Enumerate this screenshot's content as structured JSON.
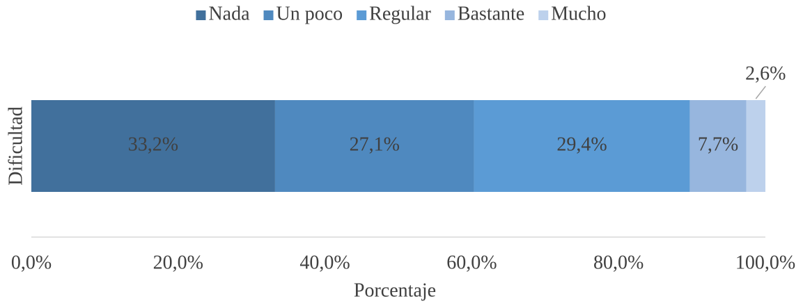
{
  "chart_data": {
    "type": "stacked_barh",
    "categories": [
      "Dificultad"
    ],
    "x_label": "Porcentaje",
    "series": [
      {
        "name": "Nada",
        "color": "#41709c",
        "values": [
          33.2
        ],
        "value_labels": [
          "33,2%"
        ]
      },
      {
        "name": "Un poco",
        "color": "#4f89bf",
        "values": [
          27.1
        ],
        "value_labels": [
          "27,1%"
        ]
      },
      {
        "name": "Regular",
        "color": "#5b9bd5",
        "values": [
          29.4
        ],
        "value_labels": [
          "29,4%"
        ]
      },
      {
        "name": "Bastante",
        "color": "#97b6de",
        "values": [
          7.7
        ],
        "value_labels": [
          "7,7%"
        ]
      },
      {
        "name": "Mucho",
        "color": "#bdd1ec",
        "values": [
          2.6
        ],
        "value_labels": [
          "2,6%"
        ]
      }
    ],
    "xlim": [
      0,
      100
    ],
    "xticks": [
      {
        "value": 0,
        "label": "0,0%"
      },
      {
        "value": 20,
        "label": "20,0%"
      },
      {
        "value": 40,
        "label": "40,0%"
      },
      {
        "value": 60,
        "label": "60,0%"
      },
      {
        "value": 80,
        "label": "80,0%"
      },
      {
        "value": 100,
        "label": "100,0%"
      }
    ],
    "grid": false,
    "legend": "top"
  }
}
